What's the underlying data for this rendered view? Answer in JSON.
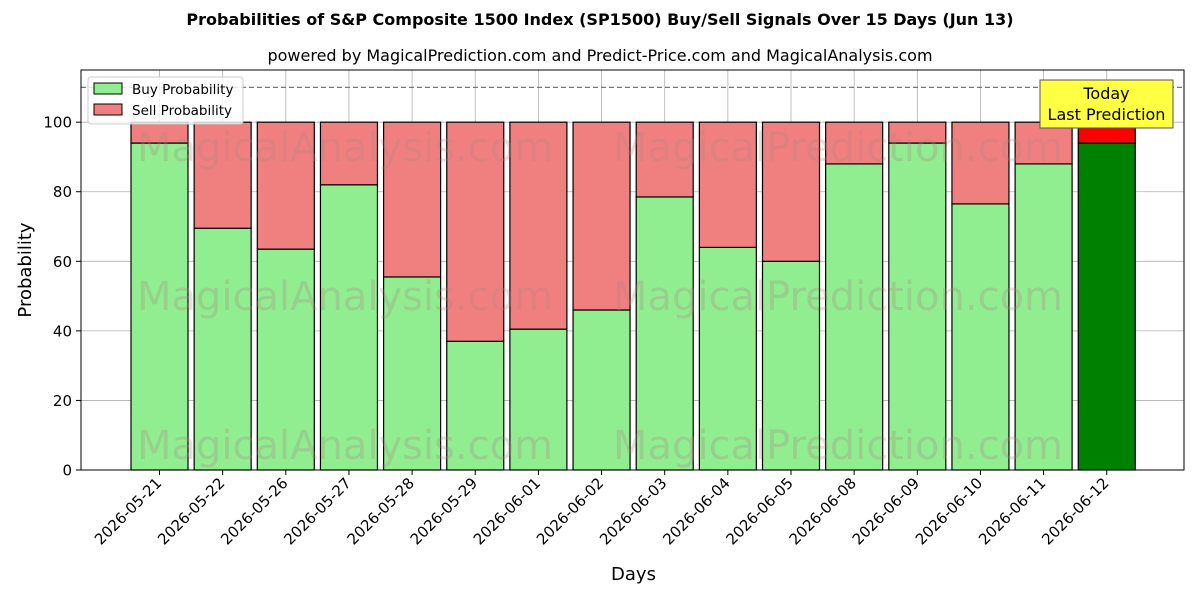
{
  "chart_data": {
    "type": "bar",
    "title": "Probabilities of S&P Composite 1500 Index (SP1500) Buy/Sell Signals Over 15 Days (Jun 13)",
    "subtitle": "powered by MagicalPrediction.com and Predict-Price.com and MagicalAnalysis.com",
    "xlabel": "Days",
    "ylabel": "Probability",
    "ylim": [
      0,
      115
    ],
    "yticks": [
      0,
      20,
      40,
      60,
      80,
      100
    ],
    "grid": true,
    "legend_position": "top-left",
    "threshold_line": 110,
    "categories": [
      "2026-05-21",
      "2026-05-22",
      "2026-05-26",
      "2026-05-27",
      "2026-05-28",
      "2026-05-29",
      "2026-06-01",
      "2026-06-02",
      "2026-06-03",
      "2026-06-04",
      "2026-06-05",
      "2026-06-08",
      "2026-06-09",
      "2026-06-10",
      "2026-06-11",
      "2026-06-12"
    ],
    "series": [
      {
        "name": "Buy Probability",
        "color": "#90ee90",
        "values": [
          94,
          69.5,
          63.5,
          82,
          55.5,
          37,
          40.5,
          46,
          78.5,
          64,
          60,
          88,
          94,
          76.5,
          88,
          94
        ]
      },
      {
        "name": "Sell Probability",
        "color": "#f08080",
        "values": [
          6,
          30.5,
          36.5,
          18,
          44.5,
          63,
          59.5,
          54,
          21.5,
          36,
          40,
          12,
          6,
          23.5,
          12,
          6
        ]
      }
    ],
    "today_colors": {
      "buy": "#008000",
      "sell": "#ff0000"
    },
    "annotation": {
      "line1": "Today",
      "line2": "Last Prediction",
      "color": "#ffff44"
    },
    "watermarks": [
      "MagicalAnalysis.com",
      "MagicalPrediction.com"
    ]
  }
}
